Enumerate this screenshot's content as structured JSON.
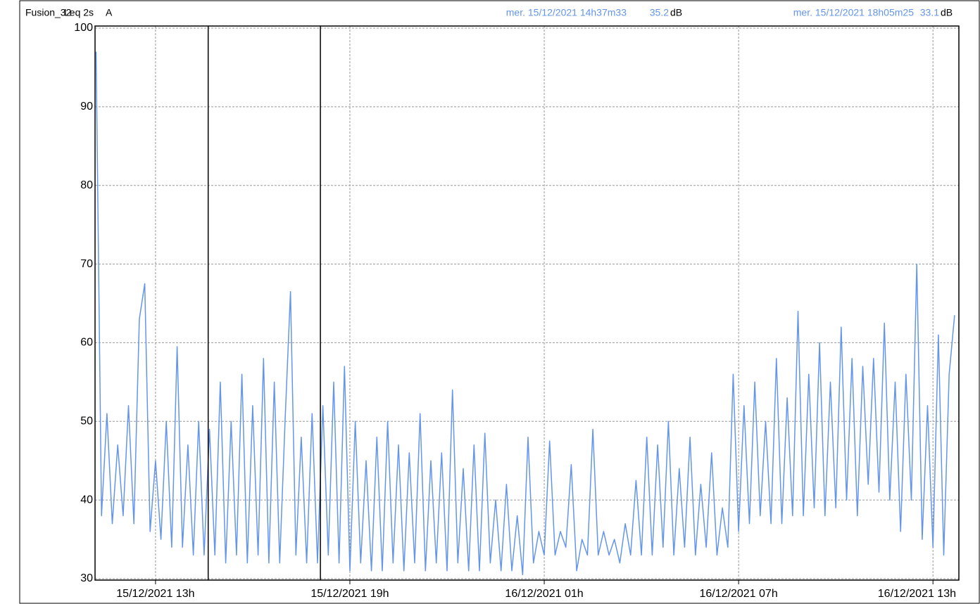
{
  "chart_data": {
    "type": "line",
    "title": "Fusion_32",
    "weighting": "A",
    "unit": "dB",
    "cursors": [
      {
        "label": "mer. 15/12/2021 14h37m33",
        "x": "2021-12-15T14:37:33",
        "value": 35.2
      },
      {
        "label": "mer. 15/12/2021 18h05m25",
        "x": "2021-12-15T18:05:25",
        "value": 33.1
      }
    ],
    "cursor_color": "#6495ed",
    "x": [
      "2021-12-15T11:10",
      "2021-12-15T11:20",
      "2021-12-15T11:30",
      "2021-12-15T11:40",
      "2021-12-15T11:50",
      "2021-12-15T12:00",
      "2021-12-15T12:10",
      "2021-12-15T12:20",
      "2021-12-15T12:30",
      "2021-12-15T12:40",
      "2021-12-15T12:50",
      "2021-12-15T13:00",
      "2021-12-15T13:10",
      "2021-12-15T13:20",
      "2021-12-15T13:30",
      "2021-12-15T13:40",
      "2021-12-15T13:50",
      "2021-12-15T14:00",
      "2021-12-15T14:10",
      "2021-12-15T14:20",
      "2021-12-15T14:30",
      "2021-12-15T14:40",
      "2021-12-15T14:50",
      "2021-12-15T15:00",
      "2021-12-15T15:10",
      "2021-12-15T15:20",
      "2021-12-15T15:30",
      "2021-12-15T15:40",
      "2021-12-15T15:50",
      "2021-12-15T16:00",
      "2021-12-15T16:10",
      "2021-12-15T16:20",
      "2021-12-15T16:30",
      "2021-12-15T16:40",
      "2021-12-15T16:50",
      "2021-12-15T17:00",
      "2021-12-15T17:10",
      "2021-12-15T17:20",
      "2021-12-15T17:30",
      "2021-12-15T17:40",
      "2021-12-15T17:50",
      "2021-12-15T18:00",
      "2021-12-15T18:10",
      "2021-12-15T18:20",
      "2021-12-15T18:30",
      "2021-12-15T18:40",
      "2021-12-15T18:50",
      "2021-12-15T19:00",
      "2021-12-15T19:10",
      "2021-12-15T19:20",
      "2021-12-15T19:30",
      "2021-12-15T19:40",
      "2021-12-15T19:50",
      "2021-12-15T20:00",
      "2021-12-15T20:10",
      "2021-12-15T20:20",
      "2021-12-15T20:30",
      "2021-12-15T20:40",
      "2021-12-15T20:50",
      "2021-12-15T21:00",
      "2021-12-15T21:10",
      "2021-12-15T21:20",
      "2021-12-15T21:30",
      "2021-12-15T21:40",
      "2021-12-15T21:50",
      "2021-12-15T22:00",
      "2021-12-15T22:10",
      "2021-12-15T22:20",
      "2021-12-15T22:30",
      "2021-12-15T22:40",
      "2021-12-15T22:50",
      "2021-12-15T23:00",
      "2021-12-15T23:10",
      "2021-12-15T23:20",
      "2021-12-15T23:30",
      "2021-12-15T23:40",
      "2021-12-15T23:50",
      "2021-12-16T00:00",
      "2021-12-16T00:10",
      "2021-12-16T00:20",
      "2021-12-16T00:30",
      "2021-12-16T00:40",
      "2021-12-16T00:50",
      "2021-12-16T01:00",
      "2021-12-16T01:10",
      "2021-12-16T01:20",
      "2021-12-16T01:30",
      "2021-12-16T01:40",
      "2021-12-16T01:50",
      "2021-12-16T02:00",
      "2021-12-16T02:10",
      "2021-12-16T02:20",
      "2021-12-16T02:30",
      "2021-12-16T02:40",
      "2021-12-16T02:50",
      "2021-12-16T03:00",
      "2021-12-16T03:10",
      "2021-12-16T03:20",
      "2021-12-16T03:30",
      "2021-12-16T03:40",
      "2021-12-16T03:50",
      "2021-12-16T04:00",
      "2021-12-16T04:10",
      "2021-12-16T04:20",
      "2021-12-16T04:30",
      "2021-12-16T04:40",
      "2021-12-16T04:50",
      "2021-12-16T05:00",
      "2021-12-16T05:10",
      "2021-12-16T05:20",
      "2021-12-16T05:30",
      "2021-12-16T05:40",
      "2021-12-16T05:50",
      "2021-12-16T06:00",
      "2021-12-16T06:10",
      "2021-12-16T06:20",
      "2021-12-16T06:30",
      "2021-12-16T06:40",
      "2021-12-16T06:50",
      "2021-12-16T07:00",
      "2021-12-16T07:10",
      "2021-12-16T07:20",
      "2021-12-16T07:30",
      "2021-12-16T07:40",
      "2021-12-16T07:50",
      "2021-12-16T08:00",
      "2021-12-16T08:10",
      "2021-12-16T08:20",
      "2021-12-16T08:30",
      "2021-12-16T08:40",
      "2021-12-16T08:50",
      "2021-12-16T09:00",
      "2021-12-16T09:10",
      "2021-12-16T09:20",
      "2021-12-16T09:30",
      "2021-12-16T09:40",
      "2021-12-16T09:50",
      "2021-12-16T10:00",
      "2021-12-16T10:10",
      "2021-12-16T10:20",
      "2021-12-16T10:30",
      "2021-12-16T10:40",
      "2021-12-16T10:50",
      "2021-12-16T11:00",
      "2021-12-16T11:10",
      "2021-12-16T11:20",
      "2021-12-16T11:30",
      "2021-12-16T11:40",
      "2021-12-16T11:50",
      "2021-12-16T12:00",
      "2021-12-16T12:10",
      "2021-12-16T12:20",
      "2021-12-16T12:30",
      "2021-12-16T12:40",
      "2021-12-16T12:50",
      "2021-12-16T13:00",
      "2021-12-16T13:10",
      "2021-12-16T13:20",
      "2021-12-16T13:30",
      "2021-12-16T13:40"
    ],
    "series": [
      {
        "name": "Leq 2s",
        "color": "#6495ed",
        "values": [
          97,
          38,
          51,
          37,
          47,
          38,
          52,
          37,
          63,
          67.5,
          36,
          45,
          35,
          50,
          34,
          59.5,
          34,
          47,
          33,
          50,
          33,
          49,
          33,
          55,
          32,
          50,
          33,
          56,
          32,
          52,
          33,
          58,
          32,
          55,
          32,
          50,
          66.5,
          33,
          48,
          32,
          51,
          32,
          52,
          33,
          55,
          32,
          57,
          31,
          50,
          32,
          45,
          31,
          48,
          31,
          50,
          32,
          47,
          31,
          46,
          32,
          51,
          31,
          45,
          32,
          46,
          31,
          54,
          32,
          44,
          31,
          47,
          31,
          48.5,
          32,
          40,
          31,
          42,
          31,
          38,
          30.5,
          48,
          32,
          36,
          33,
          47.5,
          33,
          36,
          34,
          44.5,
          31,
          35,
          33,
          49,
          33,
          36,
          33,
          35,
          32,
          37,
          33,
          42.5,
          33,
          48,
          33,
          47,
          34,
          50,
          33,
          44,
          34,
          48,
          33,
          42,
          34,
          46,
          33,
          39,
          34,
          56,
          36,
          52,
          37,
          55,
          38,
          50,
          37,
          58,
          37,
          53,
          38,
          64,
          38,
          56,
          39,
          60,
          38,
          55,
          39,
          62,
          40,
          58,
          38,
          57,
          42,
          58,
          41,
          62.5,
          40,
          55,
          36,
          56,
          40,
          70,
          35,
          52,
          34,
          61,
          33,
          56,
          63.5
        ]
      }
    ],
    "xlim": [
      "2021-12-15T11:08",
      "2021-12-16T13:48"
    ],
    "xticks": [
      {
        "value": "2021-12-15T13:00",
        "label": "15/12/2021 13h"
      },
      {
        "value": "2021-12-15T19:00",
        "label": "15/12/2021 19h"
      },
      {
        "value": "2021-12-16T01:00",
        "label": "16/12/2021 01h"
      },
      {
        "value": "2021-12-16T07:00",
        "label": "16/12/2021 07h"
      },
      {
        "value": "2021-12-16T13:00",
        "label": "16/12/2021 13h"
      }
    ],
    "ylim": [
      30,
      100
    ],
    "yticks": [
      30,
      40,
      50,
      60,
      70,
      80,
      90,
      100
    ],
    "grid": true
  }
}
